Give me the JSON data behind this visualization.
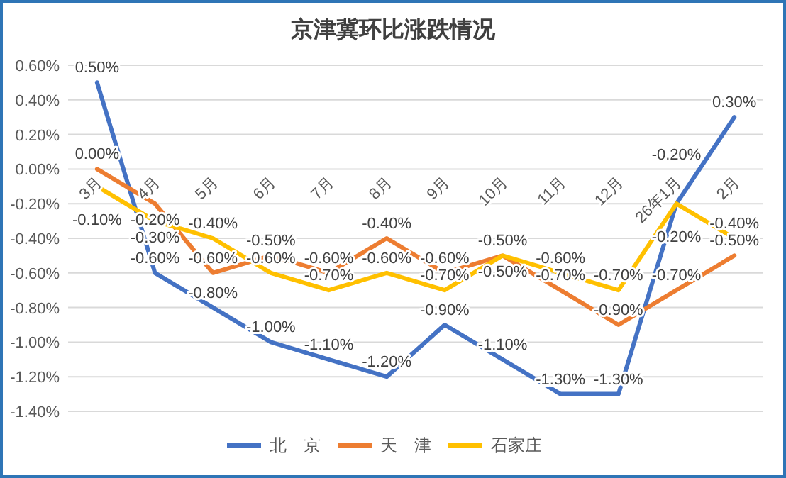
{
  "chart_data": {
    "type": "line",
    "title": "京津冀环比涨跌情况",
    "categories": [
      "3月",
      "4月",
      "5月",
      "6月",
      "7月",
      "8月",
      "9月",
      "10月",
      "11月",
      "12月",
      "26年1月",
      "2月"
    ],
    "series": [
      {
        "name": "北　京",
        "color": "#4472c4",
        "values": [
          0.5,
          -0.6,
          -0.8,
          -1.0,
          -1.1,
          -1.2,
          -0.9,
          -1.1,
          -1.3,
          -1.3,
          -0.2,
          0.3
        ],
        "value_labels": [
          "0.50%",
          "-0.60%",
          "-0.80%",
          "-1.00%",
          "-1.10%",
          "-1.20%",
          "-0.90%",
          "-1.10%",
          "-1.30%",
          "-1.30%",
          "-0.20%",
          "0.30%"
        ]
      },
      {
        "name": "天　津",
        "color": "#ed7d31",
        "values": [
          0.0,
          -0.2,
          -0.6,
          -0.5,
          -0.6,
          -0.4,
          -0.6,
          -0.5,
          -0.7,
          -0.9,
          -0.7,
          -0.5
        ],
        "value_labels": [
          "0.00%",
          "-0.20%",
          "-0.60%",
          "-0.50%",
          "-0.60%",
          "-0.40%",
          "-0.60%",
          "-0.50%",
          "-0.70%",
          "-0.90%",
          "-0.70%",
          "-0.50%"
        ]
      },
      {
        "name": "石家庄",
        "color": "#ffc000",
        "values": [
          -0.1,
          -0.3,
          -0.4,
          -0.6,
          -0.7,
          -0.6,
          -0.7,
          -0.5,
          -0.6,
          -0.7,
          -0.2,
          -0.4
        ],
        "value_labels": [
          "-0.10%",
          "-0.30%",
          "-0.40%",
          "-0.60%",
          "-0.70%",
          "-0.60%",
          "-0.70%",
          "-0.50%",
          "-0.60%",
          "-0.70%",
          "-0.20%",
          "-0.40%"
        ]
      }
    ],
    "ylim": [
      -1.4,
      0.6
    ],
    "yticks": [
      {
        "value": 0.6,
        "label": "0.60%"
      },
      {
        "value": 0.4,
        "label": "0.40%"
      },
      {
        "value": 0.2,
        "label": "0.20%"
      },
      {
        "value": 0,
        "label": "0.00%"
      },
      {
        "value": -0.2,
        "label": "-0.20%"
      },
      {
        "value": -0.4,
        "label": "-0.40%"
      },
      {
        "value": -0.6,
        "label": "-0.60%"
      },
      {
        "value": -0.8,
        "label": "-0.80%"
      },
      {
        "value": -1.0,
        "label": "-1.00%"
      },
      {
        "value": -1.2,
        "label": "-1.20%"
      },
      {
        "value": -1.4,
        "label": "-1.40%"
      }
    ],
    "grid": "y",
    "legend": "bottom",
    "marker": "none",
    "line_style": "solid"
  }
}
